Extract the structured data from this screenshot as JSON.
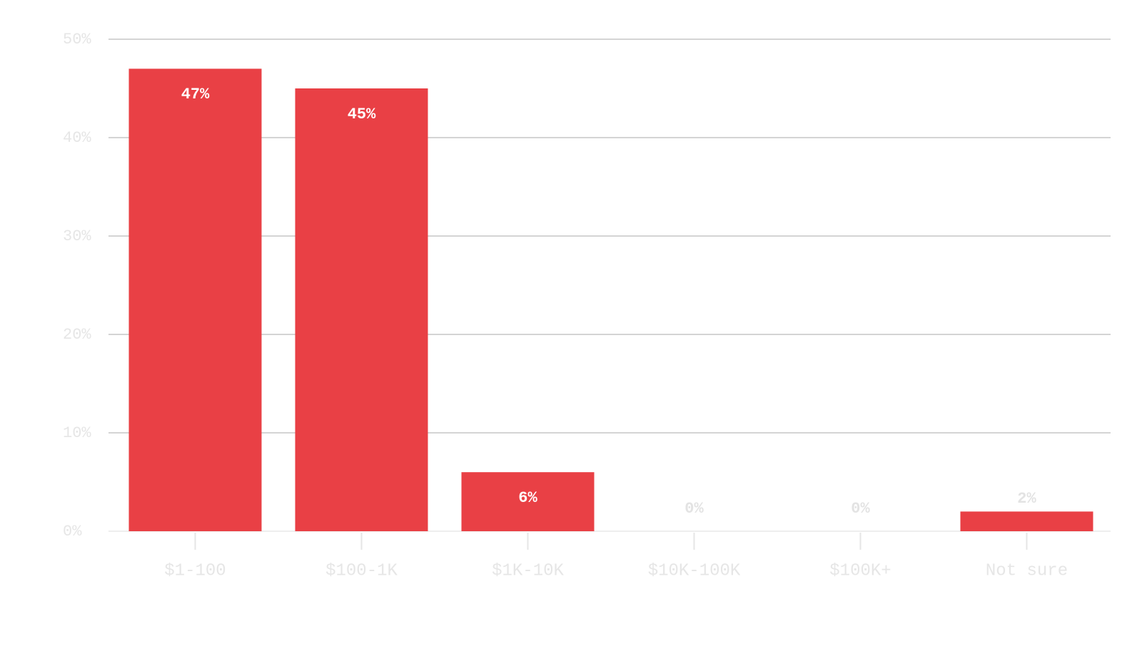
{
  "chart_data": {
    "type": "bar",
    "categories": [
      "$1-100",
      "$100-1K",
      "$1K-10K",
      "$10K-100K",
      "$100K+",
      "Not sure"
    ],
    "values": [
      47,
      45,
      6,
      0,
      0,
      2
    ],
    "value_labels": [
      "47%",
      "45%",
      "6%",
      "0%",
      "0%",
      "2%"
    ],
    "color": "#e94045",
    "ylim": [
      0,
      50
    ],
    "yticks": [
      {
        "value": 0,
        "label": "0%"
      },
      {
        "value": 10,
        "label": "10%"
      },
      {
        "value": 20,
        "label": "20%"
      },
      {
        "value": 30,
        "label": "30%"
      },
      {
        "value": 40,
        "label": "40%"
      },
      {
        "value": 50,
        "label": "50%"
      }
    ],
    "grid": true
  }
}
